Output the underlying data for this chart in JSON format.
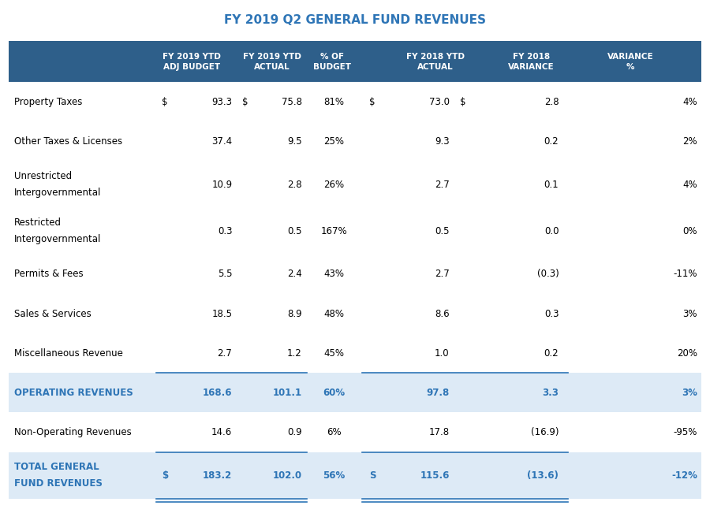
{
  "title": "FY 2019 Q2 GENERAL FUND REVENUES",
  "header_bg": "#2E5F8A",
  "header_text_color": "#FFFFFF",
  "header_labels": [
    "FY 2019 YTD\nADJ BUDGET",
    "FY 2019 YTD\nACTUAL",
    "% OF\nBUDGET",
    "FY 2018 YTD\nACTUAL",
    "FY 2018\nVARIANCE",
    "VARIANCE\n%"
  ],
  "subtotal_bg": "#DDEAF6",
  "accent_color": "#2E75B6",
  "border_color": "#2E75B6",
  "figure_bg": "#FFFFFF",
  "rows": [
    {
      "label": "Property Taxes",
      "label2": "",
      "dollar1": "$",
      "col1": "93.3",
      "dollar2": "$",
      "col2": "75.8",
      "col3": "81%",
      "dollar3": "$",
      "col4": "73.0",
      "dollar4": "$",
      "col5": "2.8",
      "col6": "4%",
      "bold": false,
      "blue": false,
      "shaded": false,
      "line_below": false
    },
    {
      "label": "Other Taxes & Licenses",
      "label2": "",
      "dollar1": "",
      "col1": "37.4",
      "dollar2": "",
      "col2": "9.5",
      "col3": "25%",
      "dollar3": "",
      "col4": "9.3",
      "dollar4": "",
      "col5": "0.2",
      "col6": "2%",
      "bold": false,
      "blue": false,
      "shaded": false,
      "line_below": false
    },
    {
      "label": "Unrestricted",
      "label2": "Intergovernmental",
      "dollar1": "",
      "col1": "10.9",
      "dollar2": "",
      "col2": "2.8",
      "col3": "26%",
      "dollar3": "",
      "col4": "2.7",
      "dollar4": "",
      "col5": "0.1",
      "col6": "4%",
      "bold": false,
      "blue": false,
      "shaded": false,
      "line_below": false
    },
    {
      "label": "Restricted",
      "label2": "Intergovernmental",
      "dollar1": "",
      "col1": "0.3",
      "dollar2": "",
      "col2": "0.5",
      "col3": "167%",
      "dollar3": "",
      "col4": "0.5",
      "dollar4": "",
      "col5": "0.0",
      "col6": "0%",
      "bold": false,
      "blue": false,
      "shaded": false,
      "line_below": false
    },
    {
      "label": "Permits & Fees",
      "label2": "",
      "dollar1": "",
      "col1": "5.5",
      "dollar2": "",
      "col2": "2.4",
      "col3": "43%",
      "dollar3": "",
      "col4": "2.7",
      "dollar4": "",
      "col5": "(0.3)",
      "col6": "-11%",
      "bold": false,
      "blue": false,
      "shaded": false,
      "line_below": false
    },
    {
      "label": "Sales & Services",
      "label2": "",
      "dollar1": "",
      "col1": "18.5",
      "dollar2": "",
      "col2": "8.9",
      "col3": "48%",
      "dollar3": "",
      "col4": "8.6",
      "dollar4": "",
      "col5": "0.3",
      "col6": "3%",
      "bold": false,
      "blue": false,
      "shaded": false,
      "line_below": false
    },
    {
      "label": "Miscellaneous Revenue",
      "label2": "",
      "dollar1": "",
      "col1": "2.7",
      "dollar2": "",
      "col2": "1.2",
      "col3": "45%",
      "dollar3": "",
      "col4": "1.0",
      "dollar4": "",
      "col5": "0.2",
      "col6": "20%",
      "bold": false,
      "blue": false,
      "shaded": false,
      "line_below": true
    },
    {
      "label": "OPERATING REVENUES",
      "label2": "",
      "dollar1": "",
      "col1": "168.6",
      "dollar2": "",
      "col2": "101.1",
      "col3": "60%",
      "dollar3": "",
      "col4": "97.8",
      "dollar4": "",
      "col5": "3.3",
      "col6": "3%",
      "bold": true,
      "blue": true,
      "shaded": true,
      "line_below": false
    },
    {
      "label": "Non-Operating Revenues",
      "label2": "",
      "dollar1": "",
      "col1": "14.6",
      "dollar2": "",
      "col2": "0.9",
      "col3": "6%",
      "dollar3": "",
      "col4": "17.8",
      "dollar4": "",
      "col5": "(16.9)",
      "col6": "-95%",
      "bold": false,
      "blue": false,
      "shaded": false,
      "line_below": true
    },
    {
      "label": "TOTAL GENERAL",
      "label2": "FUND REVENUES",
      "dollar1": "$",
      "col1": "183.2",
      "dollar2": "",
      "col2": "102.0",
      "col3": "56%",
      "dollar3": "S",
      "col4": "115.6",
      "dollar4": "",
      "col5": "(13.6)",
      "col6": "-12%",
      "bold": true,
      "blue": true,
      "shaded": true,
      "line_below": true
    }
  ],
  "title_fontsize": 11,
  "header_fontsize": 7.5,
  "body_fontsize": 8.5
}
